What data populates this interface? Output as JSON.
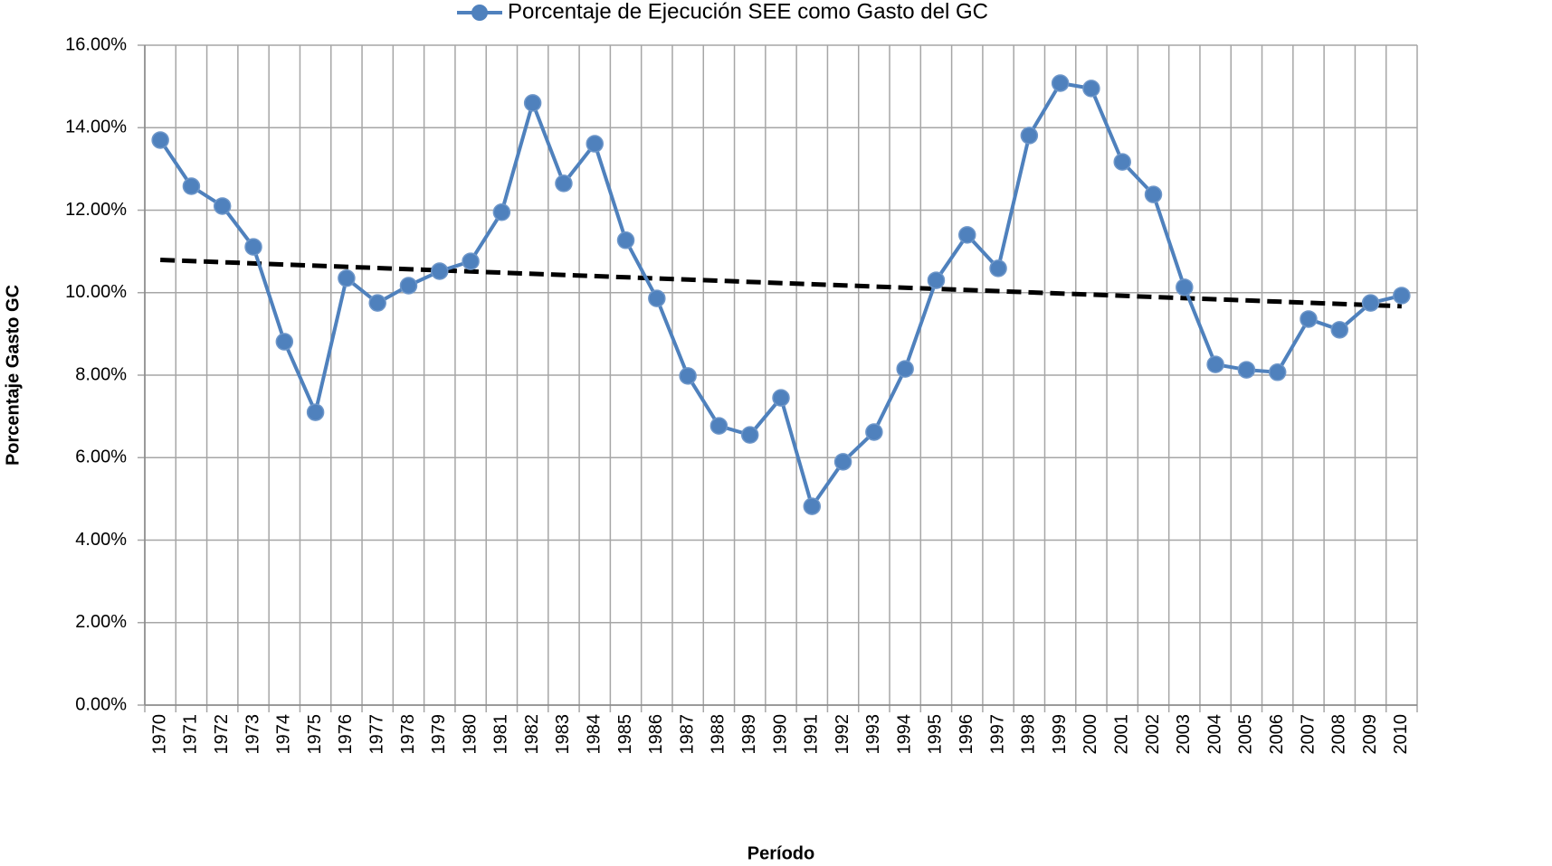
{
  "chart_data": {
    "type": "line",
    "y_axis_label": "Porcentaje Gasto GC",
    "x_axis_label": "Período",
    "categories": [
      "1970",
      "1971",
      "1972",
      "1973",
      "1974",
      "1975",
      "1976",
      "1977",
      "1978",
      "1979",
      "1980",
      "1981",
      "1982",
      "1983",
      "1984",
      "1985",
      "1986",
      "1987",
      "1988",
      "1989",
      "1990",
      "1991",
      "1992",
      "1993",
      "1994",
      "1995",
      "1996",
      "1997",
      "1998",
      "1999",
      "2000",
      "2001",
      "2002",
      "2003",
      "2004",
      "2005",
      "2006",
      "2007",
      "2008",
      "2009",
      "2010"
    ],
    "series": [
      {
        "name": "Porcentaje de Ejecución SEE como Gasto del GC",
        "color": "#4f81bd",
        "values": [
          13.7,
          12.58,
          12.1,
          11.11,
          8.81,
          7.1,
          10.35,
          9.75,
          10.17,
          10.52,
          10.76,
          11.95,
          14.6,
          12.65,
          13.61,
          11.27,
          9.86,
          7.98,
          6.77,
          6.55,
          7.45,
          4.82,
          5.9,
          6.62,
          8.15,
          10.3,
          11.4,
          10.59,
          13.81,
          15.08,
          14.95,
          13.17,
          12.38,
          10.13,
          8.26,
          8.13,
          8.07,
          9.36,
          9.1,
          9.75,
          9.93
        ]
      }
    ],
    "trendline": "linear",
    "trendline_color": "#000000",
    "ylim": [
      0,
      16
    ],
    "yticks": [
      {
        "value": 0,
        "label": "0.00%"
      },
      {
        "value": 2,
        "label": "2.00%"
      },
      {
        "value": 4,
        "label": "4.00%"
      },
      {
        "value": 6,
        "label": "6.00%"
      },
      {
        "value": 8,
        "label": "8.00%"
      },
      {
        "value": 10,
        "label": "10.00%"
      },
      {
        "value": 12,
        "label": "12.00%"
      },
      {
        "value": 14,
        "label": "14.00%"
      },
      {
        "value": 16,
        "label": "16.00%"
      }
    ],
    "grid": true,
    "legend": "top"
  }
}
